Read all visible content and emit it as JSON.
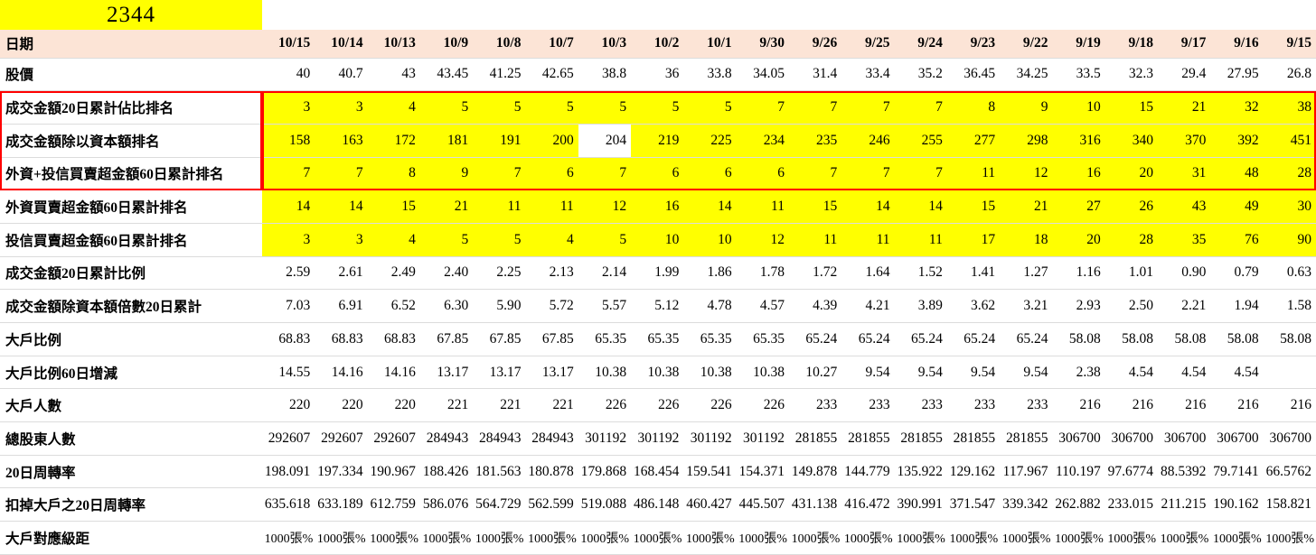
{
  "title": {
    "ticker": "2344"
  },
  "colors": {
    "highlight_yellow": "#ffff00",
    "header_pink": "#fce4d6",
    "red_box": "#ff0000"
  },
  "table": {
    "date_label": "日期",
    "dates": [
      "10/15",
      "10/14",
      "10/13",
      "10/9",
      "10/8",
      "10/7",
      "10/3",
      "10/2",
      "10/1",
      "9/30",
      "9/26",
      "9/25",
      "9/24",
      "9/23",
      "9/22",
      "9/19",
      "9/18",
      "9/17",
      "9/16",
      "9/15"
    ],
    "rows": [
      {
        "label": "股價",
        "values": [
          40,
          40.7,
          43,
          43.45,
          41.25,
          42.65,
          38.8,
          36,
          33.8,
          34.05,
          31.4,
          33.4,
          35.2,
          36.45,
          34.25,
          33.5,
          32.3,
          29.4,
          27.95,
          26.8
        ]
      },
      {
        "label": "成交金額20日累計佔比排名",
        "highlight": "yellow",
        "red_box": true,
        "values": [
          3,
          3,
          4,
          5,
          5,
          5,
          5,
          5,
          5,
          7,
          7,
          7,
          7,
          8,
          9,
          10,
          15,
          21,
          32,
          38
        ]
      },
      {
        "label": "成交金額除以資本額排名",
        "highlight": "yellow",
        "red_box": true,
        "plain_cells": [
          6
        ],
        "values": [
          158,
          163,
          172,
          181,
          191,
          200,
          204,
          219,
          225,
          234,
          235,
          246,
          255,
          277,
          298,
          316,
          340,
          370,
          392,
          451
        ]
      },
      {
        "label": "外資+投信買賣超金額60日累計排名",
        "highlight": "yellow",
        "red_box": true,
        "values": [
          7,
          7,
          8,
          9,
          7,
          6,
          7,
          6,
          6,
          6,
          7,
          7,
          7,
          11,
          12,
          16,
          20,
          31,
          48,
          28
        ]
      },
      {
        "label": "外資買賣超金額60日累計排名",
        "highlight": "yellow",
        "values": [
          14,
          14,
          15,
          21,
          11,
          11,
          12,
          16,
          14,
          11,
          15,
          14,
          14,
          15,
          21,
          27,
          26,
          43,
          49,
          30
        ]
      },
      {
        "label": "投信買賣超金額60日累計排名",
        "highlight": "yellow",
        "values": [
          3,
          3,
          4,
          5,
          5,
          4,
          5,
          10,
          10,
          12,
          11,
          11,
          11,
          17,
          18,
          20,
          28,
          35,
          76,
          90
        ]
      },
      {
        "label": "成交金額20日累計比例",
        "values": [
          "2.59",
          "2.61",
          "2.49",
          "2.40",
          "2.25",
          "2.13",
          "2.14",
          "1.99",
          "1.86",
          "1.78",
          "1.72",
          "1.64",
          "1.52",
          "1.41",
          "1.27",
          "1.16",
          "1.01",
          "0.90",
          "0.79",
          "0.63"
        ]
      },
      {
        "label": "成交金額除資本額倍數20日累計",
        "values": [
          "7.03",
          "6.91",
          "6.52",
          "6.30",
          "5.90",
          "5.72",
          "5.57",
          "5.12",
          "4.78",
          "4.57",
          "4.39",
          "4.21",
          "3.89",
          "3.62",
          "3.21",
          "2.93",
          "2.50",
          "2.21",
          "1.94",
          "1.58"
        ]
      },
      {
        "label": "大戶比例",
        "values": [
          68.83,
          68.83,
          68.83,
          67.85,
          67.85,
          67.85,
          65.35,
          65.35,
          65.35,
          65.35,
          65.24,
          65.24,
          65.24,
          65.24,
          65.24,
          58.08,
          58.08,
          58.08,
          58.08,
          58.08
        ]
      },
      {
        "label": "大戶比例60日增減",
        "values": [
          14.55,
          14.16,
          14.16,
          13.17,
          13.17,
          13.17,
          10.38,
          10.38,
          10.38,
          10.38,
          10.27,
          9.54,
          9.54,
          9.54,
          9.54,
          2.38,
          4.54,
          4.54,
          4.54,
          ""
        ]
      },
      {
        "label": "大戶人數",
        "values": [
          220,
          220,
          220,
          221,
          221,
          221,
          226,
          226,
          226,
          226,
          233,
          233,
          233,
          233,
          233,
          216,
          216,
          216,
          216,
          216
        ]
      },
      {
        "label": "總股東人數",
        "values": [
          292607,
          292607,
          292607,
          284943,
          284943,
          284943,
          301192,
          301192,
          301192,
          301192,
          281855,
          281855,
          281855,
          281855,
          281855,
          306700,
          306700,
          306700,
          306700,
          306700
        ]
      },
      {
        "label": "20日周轉率",
        "values": [
          198.091,
          197.334,
          190.967,
          188.426,
          181.563,
          180.878,
          179.868,
          168.454,
          159.541,
          154.371,
          149.878,
          144.779,
          135.922,
          129.162,
          117.967,
          110.197,
          97.6774,
          88.5392,
          79.7141,
          66.5762
        ]
      },
      {
        "label": "扣掉大戶之20日周轉率",
        "values": [
          635.618,
          633.189,
          612.759,
          586.076,
          564.729,
          562.599,
          519.088,
          486.148,
          460.427,
          445.507,
          431.138,
          416.472,
          390.991,
          371.547,
          339.342,
          262.882,
          233.015,
          211.215,
          190.162,
          158.821
        ]
      },
      {
        "label": "大戶對應級距",
        "compact": true,
        "values": [
          "1000張%",
          "1000張%",
          "1000張%",
          "1000張%",
          "1000張%",
          "1000張%",
          "1000張%",
          "1000張%",
          "1000張%",
          "1000張%",
          "1000張%",
          "1000張%",
          "1000張%",
          "1000張%",
          "1000張%",
          "1000張%",
          "1000張%",
          "1000張%",
          "1000張%",
          "1000張%"
        ]
      }
    ]
  }
}
